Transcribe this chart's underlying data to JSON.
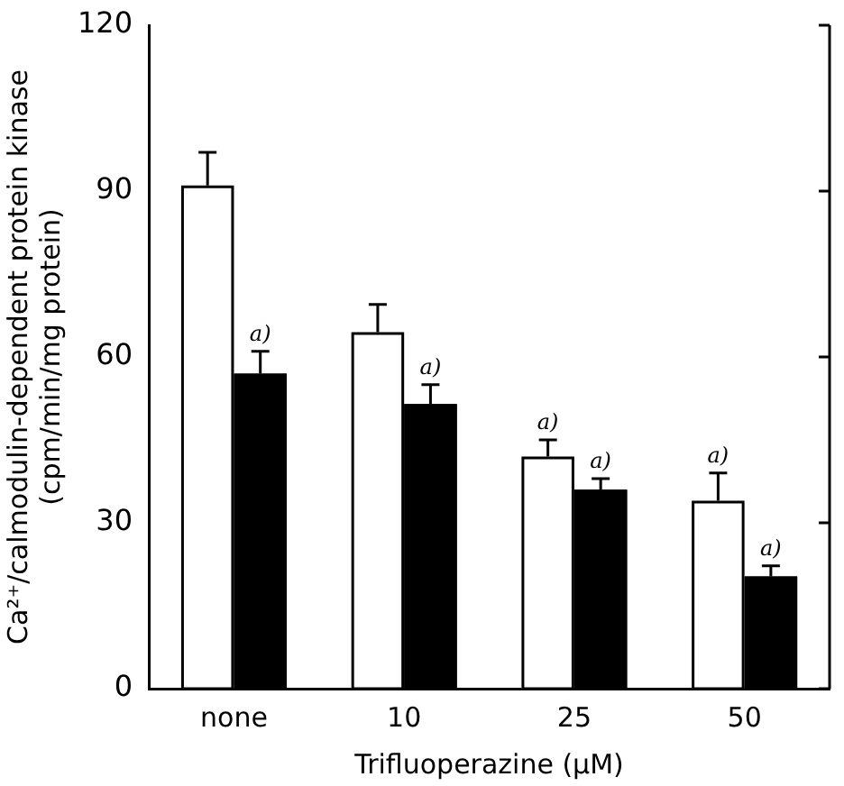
{
  "chart_data": {
    "type": "bar",
    "xlabel": "Trifluoperazine (μM)",
    "ylabel": "Ca²⁺/calmodulin-dependent protein kinase\n(cpm/min/mg protein)",
    "categories": [
      "none",
      "10",
      "25",
      "50"
    ],
    "series": [
      {
        "color": "#ffffff",
        "values": [
          91,
          64.5,
          42,
          34
        ],
        "errors": [
          [
            91,
            97
          ],
          [
            64.5,
            69.5
          ],
          [
            42,
            45
          ],
          [
            34,
            39
          ]
        ]
      },
      {
        "color": "#000000",
        "values": [
          57,
          51.5,
          36,
          20.3
        ],
        "errors": [
          [
            57,
            61
          ],
          [
            51.5,
            55
          ],
          [
            36,
            38
          ],
          [
            20.3,
            22.2
          ]
        ]
      }
    ],
    "ylim": [
      0,
      120
    ],
    "yticks": [
      0,
      30,
      60,
      90,
      120
    ],
    "annotations": [
      {
        "text": "a)",
        "x": "none",
        "y": 57
      },
      {
        "text": "a)",
        "x": "10",
        "y": 51.5
      },
      {
        "text": "a)",
        "x": "25",
        "y": 42
      },
      {
        "text": "a)",
        "x": "25",
        "y": 36
      },
      {
        "text": "a)",
        "x": "50",
        "y": 34
      },
      {
        "text": "a)",
        "x": "50",
        "y": 20.3
      }
    ],
    "grid": false,
    "legend": false
  }
}
